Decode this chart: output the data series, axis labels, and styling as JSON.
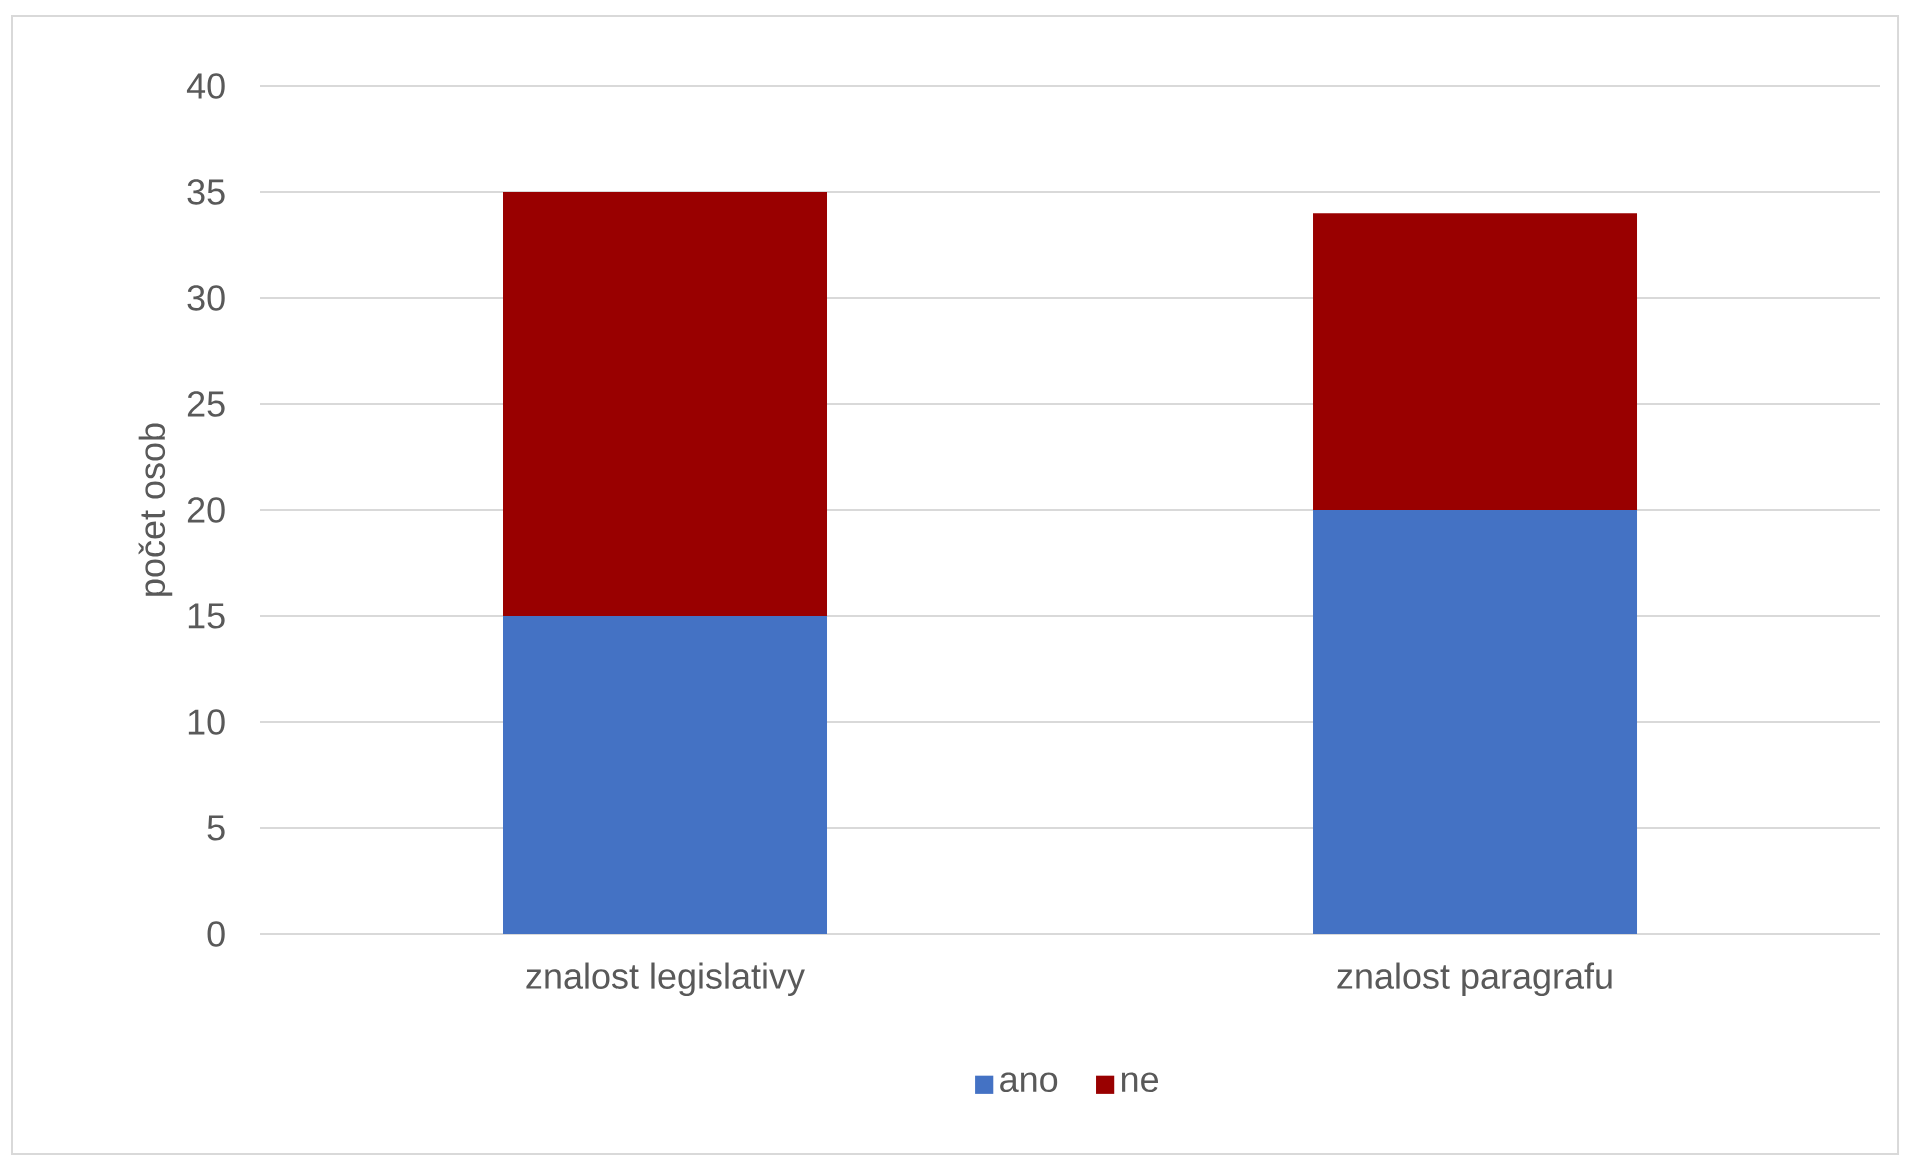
{
  "chart_data": {
    "type": "bar",
    "stacked": true,
    "ylabel": "počet osob",
    "categories": [
      "znalost legislativy",
      "znalost paragrafu"
    ],
    "series": [
      {
        "name": "ano",
        "color": "#4472c4",
        "values": [
          15,
          20
        ]
      },
      {
        "name": "ne",
        "color": "#990000",
        "values": [
          20,
          14
        ]
      }
    ],
    "ylim": [
      0,
      40
    ],
    "yticks": [
      0,
      5,
      10,
      15,
      20,
      25,
      30,
      35,
      40
    ],
    "grid": "y",
    "legend": "bottom"
  }
}
